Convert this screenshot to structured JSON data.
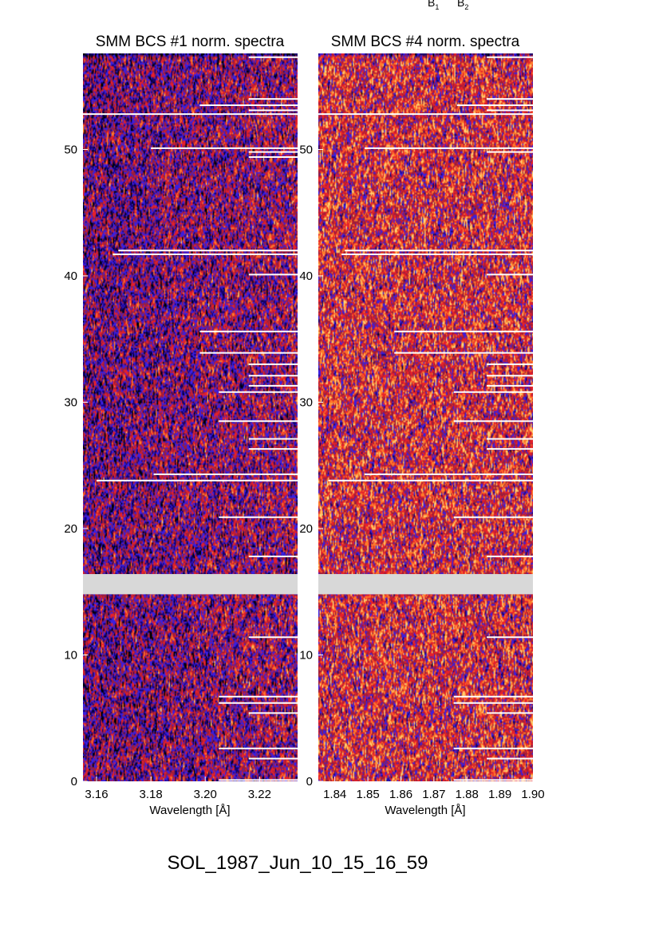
{
  "top_markers": {
    "b1": {
      "letter": "B",
      "sub": "1"
    },
    "b2": {
      "letter": "B",
      "sub": "2"
    }
  },
  "footer_label": "SOL_1987_Jun_10_15_16_59",
  "colors": {
    "background": "#000000",
    "palette": [
      "#000000",
      "#14006e",
      "#3a1fe0",
      "#9a1e3c",
      "#e6202a",
      "#ff7a2a",
      "#ffd070"
    ],
    "gap": "#d8d8d8",
    "stripe": "#ffffff"
  },
  "chart_data": [
    {
      "type": "heatmap",
      "title": "SMM BCS #1 norm. spectra",
      "xlabel": "Wavelength [Å]",
      "ylabel": "",
      "xlim": [
        3.155,
        3.234
      ],
      "ylim": [
        0,
        57.6
      ],
      "xticks": [
        3.16,
        3.18,
        3.2,
        3.22
      ],
      "xtick_labels": [
        "3.16",
        "3.18",
        "3.20",
        "3.22"
      ],
      "yticks": [
        0,
        10,
        20,
        30,
        40,
        50
      ],
      "ytick_labels": [
        "0",
        "10",
        "20",
        "30",
        "40",
        "50"
      ],
      "data_gap_rows": [
        14.8,
        16.4
      ],
      "saturated_rows": [
        {
          "y": 57.3,
          "x_start": 3.216
        },
        {
          "y": 54.0,
          "x_start": 3.216
        },
        {
          "y": 53.5,
          "x_start": 3.198
        },
        {
          "y": 53.1,
          "x_start": 3.216
        },
        {
          "y": 52.8,
          "x_start": 3.155
        },
        {
          "y": 50.1,
          "x_start": 3.18
        },
        {
          "y": 49.8,
          "x_start": 3.216
        },
        {
          "y": 49.4,
          "x_start": 3.216
        },
        {
          "y": 42.0,
          "x_start": 3.168
        },
        {
          "y": 41.7,
          "x_start": 3.166
        },
        {
          "y": 40.1,
          "x_start": 3.216
        },
        {
          "y": 35.6,
          "x_start": 3.198
        },
        {
          "y": 33.9,
          "x_start": 3.198
        },
        {
          "y": 33.0,
          "x_start": 3.216
        },
        {
          "y": 32.1,
          "x_start": 3.216
        },
        {
          "y": 31.3,
          "x_start": 3.216
        },
        {
          "y": 30.8,
          "x_start": 3.205
        },
        {
          "y": 28.5,
          "x_start": 3.205
        },
        {
          "y": 27.1,
          "x_start": 3.216
        },
        {
          "y": 26.3,
          "x_start": 3.216
        },
        {
          "y": 24.3,
          "x_start": 3.181
        },
        {
          "y": 23.8,
          "x_start": 3.16
        },
        {
          "y": 20.9,
          "x_start": 3.205
        },
        {
          "y": 17.8,
          "x_start": 3.216
        },
        {
          "y": 11.4,
          "x_start": 3.216
        },
        {
          "y": 6.7,
          "x_start": 3.205
        },
        {
          "y": 6.2,
          "x_start": 3.205
        },
        {
          "y": 5.4,
          "x_start": 3.216
        },
        {
          "y": 2.6,
          "x_start": 3.205
        },
        {
          "y": 1.8,
          "x_start": 3.216
        },
        {
          "y": 0.1,
          "x_start": 3.205
        }
      ]
    },
    {
      "type": "heatmap",
      "title": "SMM BCS #4 norm. spectra",
      "xlabel": "Wavelength [Å]",
      "ylabel": "",
      "xlim": [
        1.835,
        1.9
      ],
      "ylim": [
        0,
        57.6
      ],
      "xticks": [
        1.84,
        1.85,
        1.86,
        1.87,
        1.88,
        1.89,
        1.9
      ],
      "xtick_labels": [
        "1.84",
        "1.85",
        "1.86",
        "1.87",
        "1.88",
        "1.89",
        "1.90"
      ],
      "yticks": [
        0,
        10,
        20,
        30,
        40,
        50
      ],
      "ytick_labels": [
        "0",
        "10",
        "20",
        "30",
        "40",
        "50"
      ],
      "data_gap_rows": [
        14.8,
        16.4
      ],
      "saturated_rows": [
        {
          "y": 57.3,
          "x_start": 1.886
        },
        {
          "y": 54.0,
          "x_start": 1.886
        },
        {
          "y": 53.5,
          "x_start": 1.877
        },
        {
          "y": 53.1,
          "x_start": 1.886
        },
        {
          "y": 52.8,
          "x_start": 1.835
        },
        {
          "y": 50.1,
          "x_start": 1.849
        },
        {
          "y": 49.8,
          "x_start": 1.886
        },
        {
          "y": 42.0,
          "x_start": 1.843
        },
        {
          "y": 41.7,
          "x_start": 1.842
        },
        {
          "y": 40.1,
          "x_start": 1.886
        },
        {
          "y": 35.6,
          "x_start": 1.858
        },
        {
          "y": 33.9,
          "x_start": 1.858
        },
        {
          "y": 33.0,
          "x_start": 1.886
        },
        {
          "y": 32.1,
          "x_start": 1.886
        },
        {
          "y": 31.3,
          "x_start": 1.886
        },
        {
          "y": 30.8,
          "x_start": 1.876
        },
        {
          "y": 28.5,
          "x_start": 1.876
        },
        {
          "y": 27.1,
          "x_start": 1.886
        },
        {
          "y": 26.3,
          "x_start": 1.886
        },
        {
          "y": 24.3,
          "x_start": 1.849
        },
        {
          "y": 23.8,
          "x_start": 1.838
        },
        {
          "y": 20.9,
          "x_start": 1.876
        },
        {
          "y": 17.8,
          "x_start": 1.886
        },
        {
          "y": 11.4,
          "x_start": 1.886
        },
        {
          "y": 6.7,
          "x_start": 1.876
        },
        {
          "y": 6.2,
          "x_start": 1.876
        },
        {
          "y": 5.4,
          "x_start": 1.886
        },
        {
          "y": 2.6,
          "x_start": 1.876
        },
        {
          "y": 1.8,
          "x_start": 1.886
        },
        {
          "y": 0.1,
          "x_start": 1.876
        }
      ]
    }
  ]
}
